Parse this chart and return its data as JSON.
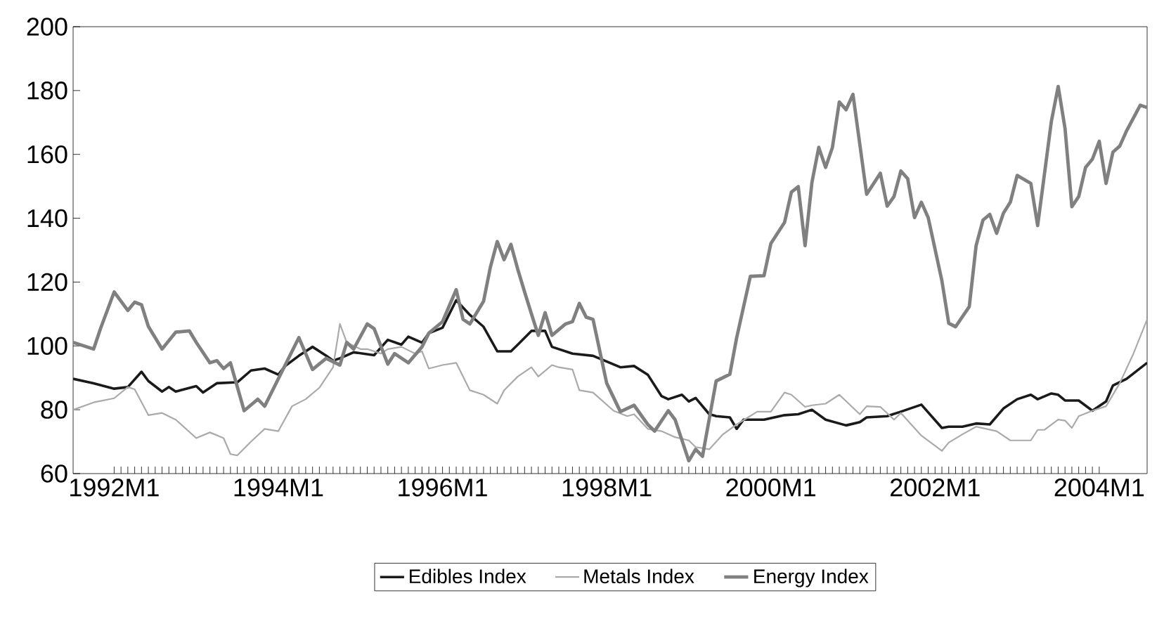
{
  "chart_data": {
    "type": "line",
    "xlim": [
      "1991-07",
      "2004-08"
    ],
    "xticks": [
      {
        "value": "1992-01",
        "label": "1992M1"
      },
      {
        "value": "1994-01",
        "label": "1994M1"
      },
      {
        "value": "1996-01",
        "label": "1996M1"
      },
      {
        "value": "1998-01",
        "label": "1998M1"
      },
      {
        "value": "2000-01",
        "label": "2000M1"
      },
      {
        "value": "2002-01",
        "label": "2002M1"
      },
      {
        "value": "2004-01",
        "label": "2004M1"
      }
    ],
    "ylim": [
      60,
      200
    ],
    "yticks": [
      60,
      80,
      100,
      120,
      140,
      160,
      180,
      200
    ],
    "grid": false,
    "legend": "bottom",
    "marker": "none",
    "line_style": "solid",
    "series": [
      {
        "name": "Edibles Index",
        "color": "#1a1a1a",
        "x": [
          "1991-07",
          "1991-10",
          "1992-01",
          "1992-03",
          "1992-05",
          "1992-06",
          "1992-08",
          "1992-09",
          "1992-10",
          "1993-01",
          "1993-02",
          "1993-04",
          "1993-07",
          "1993-09",
          "1993-11",
          "1994-01",
          "1994-02",
          "1994-04",
          "1994-06",
          "1994-08",
          "1994-09",
          "1994-10",
          "1994-12",
          "1995-03",
          "1995-05",
          "1995-07",
          "1995-08",
          "1995-10",
          "1995-11",
          "1996-01",
          "1996-03",
          "1996-05",
          "1996-07",
          "1996-09",
          "1996-11",
          "1996-12",
          "1997-02",
          "1997-04",
          "1997-05",
          "1997-08",
          "1997-11",
          "1998-03",
          "1998-05",
          "1998-07",
          "1998-09",
          "1998-10",
          "1998-12",
          "1999-01",
          "1999-02",
          "1999-04",
          "1999-05",
          "1999-07",
          "1999-08",
          "1999-09",
          "1999-12",
          "2000-03",
          "2000-05",
          "2000-07",
          "2000-09",
          "2000-12",
          "2001-02",
          "2001-03",
          "2001-06",
          "2001-08",
          "2001-11",
          "2002-02",
          "2002-03",
          "2002-05",
          "2002-07",
          "2002-09",
          "2002-11",
          "2003-01",
          "2003-03",
          "2003-04",
          "2003-06",
          "2003-07",
          "2003-08",
          "2003-10",
          "2003-12",
          "2004-02",
          "2004-03",
          "2004-05",
          "2004-08"
        ],
        "values": [
          89.7,
          88.3,
          86.6,
          87.1,
          91.9,
          89,
          85.7,
          87.1,
          85.7,
          87.4,
          85.4,
          88.3,
          88.6,
          92.3,
          92.9,
          91,
          93.7,
          96.9,
          99.7,
          96.9,
          95.4,
          96.1,
          98,
          97.1,
          101.9,
          100.4,
          102.9,
          101,
          104,
          105.7,
          114.3,
          109.7,
          106,
          98.3,
          98.3,
          100.4,
          104.7,
          104.7,
          99.7,
          97.6,
          96.9,
          93.3,
          93.7,
          91,
          84.3,
          83.3,
          84.7,
          82.6,
          83.7,
          78.6,
          78,
          77.6,
          74,
          76.9,
          76.9,
          78.3,
          78.6,
          80,
          76.9,
          75.1,
          76.1,
          77.6,
          78,
          79.4,
          81.6,
          74.3,
          74.7,
          74.7,
          75.7,
          75.4,
          80.4,
          83.3,
          84.7,
          83.3,
          85.1,
          84.7,
          82.9,
          82.9,
          79.7,
          82.6,
          87.6,
          89.7,
          94.7
        ]
      },
      {
        "name": "Metals Index",
        "color": "#aaaaaa",
        "x": [
          "1991-07",
          "1991-10",
          "1992-01",
          "1992-03",
          "1992-04",
          "1992-06",
          "1992-08",
          "1992-10",
          "1993-01",
          "1993-03",
          "1993-05",
          "1993-06",
          "1993-07",
          "1993-09",
          "1993-11",
          "1994-01",
          "1994-03",
          "1994-05",
          "1994-07",
          "1994-09",
          "1994-10",
          "1994-11",
          "1995-01",
          "1995-02",
          "1995-04",
          "1995-05",
          "1995-07",
          "1995-09",
          "1995-10",
          "1995-11",
          "1996-01",
          "1996-03",
          "1996-05",
          "1996-07",
          "1996-09",
          "1996-10",
          "1996-12",
          "1997-02",
          "1997-03",
          "1997-05",
          "1997-06",
          "1997-08",
          "1997-09",
          "1997-11",
          "1998-02",
          "1998-04",
          "1998-05",
          "1998-07",
          "1998-09",
          "1998-11",
          "1999-01",
          "1999-02",
          "1999-04",
          "1999-06",
          "1999-08",
          "1999-11",
          "2000-01",
          "2000-03",
          "2000-04",
          "2000-06",
          "2000-07",
          "2000-09",
          "2000-11",
          "2001-02",
          "2001-03",
          "2001-05",
          "2001-07",
          "2001-08",
          "2001-11",
          "2002-02",
          "2002-03",
          "2002-05",
          "2002-07",
          "2002-10",
          "2002-12",
          "2003-03",
          "2003-04",
          "2003-05",
          "2003-07",
          "2003-08",
          "2003-09",
          "2003-10",
          "2003-12",
          "2004-02",
          "2004-04",
          "2004-06",
          "2004-08"
        ],
        "values": [
          80,
          82.3,
          83.6,
          87.1,
          86.4,
          78.3,
          79,
          76.9,
          71.1,
          72.9,
          71.1,
          66.1,
          65.7,
          70,
          74,
          73.3,
          81.1,
          83.3,
          86.9,
          93.3,
          106.9,
          101.1,
          99,
          99,
          97.6,
          99,
          99.7,
          97.6,
          98.3,
          92.9,
          94,
          94.7,
          86.1,
          84.7,
          81.9,
          86.1,
          90.4,
          93.3,
          90.4,
          94,
          93.3,
          92.6,
          86.1,
          85.4,
          79.7,
          78,
          78.6,
          74,
          73.3,
          71.4,
          70.4,
          68.3,
          67.6,
          72.3,
          75.4,
          79.4,
          79.4,
          85.4,
          84.7,
          80.9,
          81.4,
          81.9,
          84.7,
          78.6,
          81.1,
          80.9,
          76.9,
          79,
          71.9,
          67.1,
          69.7,
          72.3,
          74.7,
          73.3,
          70.4,
          70.4,
          73.7,
          73.7,
          76.9,
          76.6,
          74.3,
          78,
          79.7,
          81.1,
          88.3,
          97.6,
          108.3
        ]
      },
      {
        "name": "Energy Index",
        "color": "#808080",
        "x": [
          "1991-07",
          "1991-10",
          "1991-11",
          "1992-01",
          "1992-03",
          "1992-04",
          "1992-05",
          "1992-06",
          "1992-08",
          "1992-10",
          "1992-12",
          "1993-01",
          "1993-03",
          "1993-04",
          "1993-05",
          "1993-06",
          "1993-08",
          "1993-10",
          "1993-11",
          "1994-01",
          "1994-04",
          "1994-06",
          "1994-08",
          "1994-10",
          "1994-11",
          "1994-12",
          "1995-02",
          "1995-03",
          "1995-05",
          "1995-06",
          "1995-08",
          "1995-10",
          "1995-11",
          "1996-01",
          "1996-03",
          "1996-04",
          "1996-05",
          "1996-07",
          "1996-08",
          "1996-09",
          "1996-10",
          "1996-11",
          "1996-12",
          "1997-01",
          "1997-02",
          "1997-03",
          "1997-04",
          "1997-05",
          "1997-07",
          "1997-08",
          "1997-09",
          "1997-10",
          "1997-11",
          "1998-01",
          "1998-03",
          "1998-05",
          "1998-07",
          "1998-08",
          "1998-10",
          "1998-11",
          "1999-01",
          "1999-02",
          "1999-03",
          "1999-05",
          "1999-07",
          "1999-08",
          "1999-10",
          "1999-12",
          "2000-01",
          "2000-03",
          "2000-04",
          "2000-05",
          "2000-06",
          "2000-07",
          "2000-08",
          "2000-09",
          "2000-10",
          "2000-11",
          "2000-12",
          "2001-01",
          "2001-03",
          "2001-05",
          "2001-06",
          "2001-07",
          "2001-08",
          "2001-09",
          "2001-10",
          "2001-11",
          "2001-12",
          "2002-02",
          "2002-03",
          "2002-04",
          "2002-06",
          "2002-07",
          "2002-08",
          "2002-09",
          "2002-10",
          "2002-11",
          "2002-12",
          "2003-01",
          "2003-03",
          "2003-04",
          "2003-06",
          "2003-07",
          "2003-08",
          "2003-09",
          "2003-10",
          "2003-11",
          "2003-12",
          "2004-01",
          "2004-02",
          "2004-03",
          "2004-04",
          "2004-05",
          "2004-07",
          "2004-08"
        ],
        "values": [
          101.1,
          99,
          105.4,
          116.9,
          111.1,
          113.7,
          112.9,
          106.1,
          99,
          104.3,
          104.7,
          101.1,
          94.7,
          95.4,
          92.9,
          94.7,
          79.7,
          83.3,
          81.1,
          89.7,
          102.6,
          92.6,
          96.1,
          94,
          101.1,
          99,
          106.9,
          105.4,
          94.3,
          97.6,
          94.7,
          99.7,
          104,
          107.6,
          117.6,
          108.3,
          106.9,
          114,
          124.7,
          132.7,
          127,
          131.8,
          124,
          116.9,
          110,
          103.3,
          110.4,
          103.3,
          106.9,
          107.6,
          113.3,
          109,
          108.3,
          88.3,
          79.4,
          81.4,
          75.4,
          73.3,
          79.7,
          76.9,
          64,
          67.6,
          65.4,
          89,
          91.1,
          102.6,
          121.8,
          122,
          132.1,
          138.7,
          148.2,
          149.9,
          131.4,
          151.2,
          162.2,
          155.9,
          162.2,
          176.4,
          174,
          178.8,
          147.5,
          154.1,
          143.8,
          146.8,
          154.8,
          152.4,
          140.2,
          145,
          140.2,
          120.4,
          107.1,
          106,
          112.3,
          131.4,
          139.4,
          141.2,
          135.3,
          141.6,
          145,
          153.4,
          150.9,
          137.7,
          170.3,
          181.3,
          168.1,
          143.6,
          146.8,
          155.9,
          158.5,
          164.1,
          150.9,
          160.7,
          162.6,
          167.4,
          175.4,
          174.7
        ]
      }
    ]
  }
}
